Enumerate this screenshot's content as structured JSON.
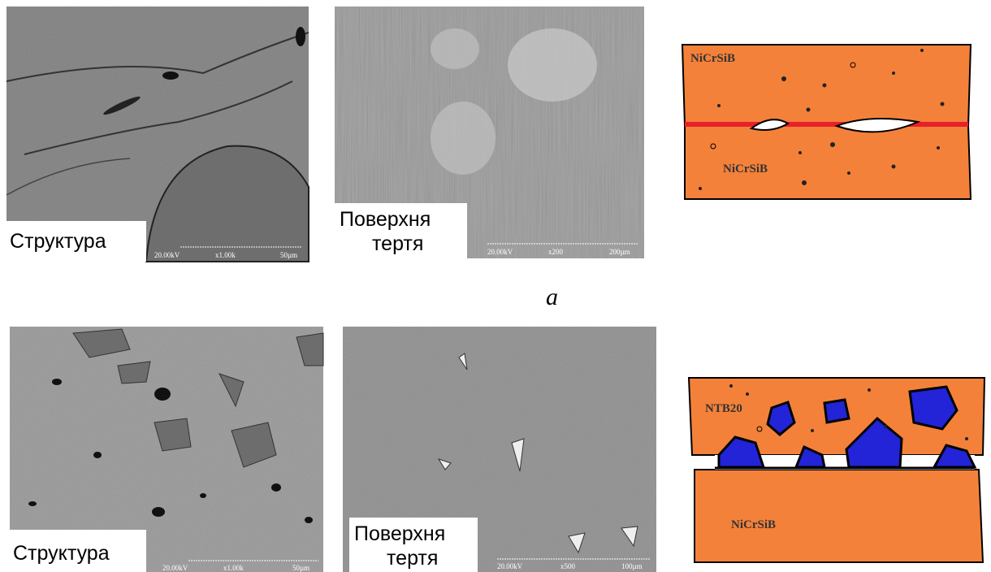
{
  "row_a": {
    "structure": {
      "label": "Структура",
      "scale_bar": [
        "20.00kV",
        "x1.00k",
        "50µm"
      ]
    },
    "friction_surface": {
      "label": [
        "Поверхня",
        "тертя"
      ],
      "scale_bar": [
        "20.00kV",
        "x200",
        "200µm"
      ]
    },
    "diagram": {
      "top_layer": "NiCrSiB",
      "bottom_layer": "NiCrSiB"
    },
    "caption": "a"
  },
  "row_b": {
    "structure": {
      "label": "Структура",
      "scale_bar": [
        "20.00kV",
        "x1.00k",
        "50µm"
      ]
    },
    "friction_surface": {
      "label": [
        "Поверхня",
        "тертя"
      ],
      "scale_bar": [
        "20.00kV",
        "x500",
        "100µm"
      ]
    },
    "diagram": {
      "top_layer": "NTB20",
      "bottom_layer": "NiCrSiB"
    }
  }
}
